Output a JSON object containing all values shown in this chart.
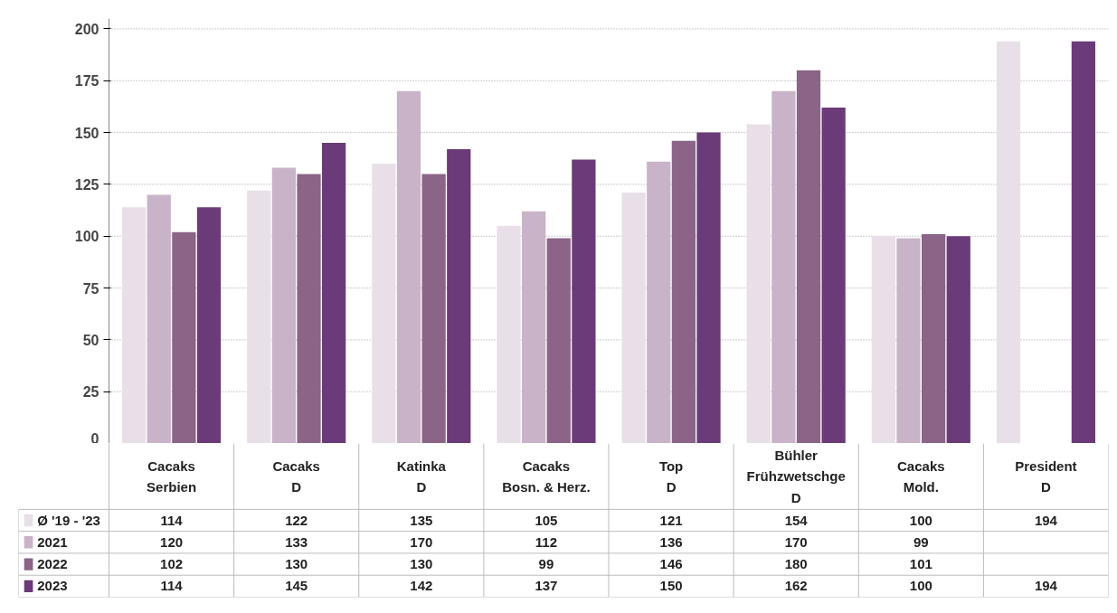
{
  "chart_data": {
    "type": "bar",
    "categories": [
      "Cacaks\nSerbien",
      "Cacaks\nD",
      "Katinka\nD",
      "Cacaks\nBosn. & Herz.",
      "Top\nD",
      "Bühler\nFrühzwetschge\nD",
      "Cacaks\nMold.",
      "President\nD"
    ],
    "series": [
      {
        "name": "Ø '19 - '23",
        "color": "#e8dfe9",
        "values": [
          114,
          122,
          135,
          105,
          121,
          154,
          100,
          194
        ]
      },
      {
        "name": "2021",
        "color": "#c9b3c8",
        "values": [
          120,
          133,
          170,
          112,
          136,
          170,
          99,
          null
        ]
      },
      {
        "name": "2022",
        "color": "#8b6487",
        "values": [
          102,
          130,
          130,
          99,
          146,
          180,
          101,
          null
        ]
      },
      {
        "name": "2023",
        "color": "#6b3a78",
        "values": [
          114,
          145,
          142,
          137,
          150,
          162,
          100,
          194
        ]
      }
    ],
    "ylim": [
      0,
      205
    ],
    "yticks": [
      0,
      25,
      50,
      75,
      100,
      125,
      150,
      175,
      200
    ],
    "grid": "y",
    "legend": "bottom left",
    "data_labels": true
  }
}
